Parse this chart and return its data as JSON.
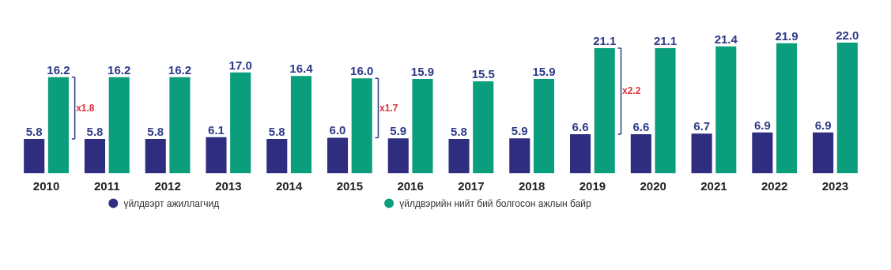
{
  "chart_data": {
    "type": "bar",
    "categories": [
      "2010",
      "2011",
      "2012",
      "2013",
      "2014",
      "2015",
      "2016",
      "2017",
      "2018",
      "2019",
      "2020",
      "2021",
      "2022",
      "2023"
    ],
    "series": [
      {
        "name": "үйлдвэрт ажиллагчид",
        "color": "#2e2d7f",
        "values": [
          5.8,
          5.8,
          5.8,
          6.1,
          5.8,
          6.0,
          5.9,
          5.8,
          5.9,
          6.6,
          6.6,
          6.7,
          6.9,
          6.9
        ],
        "value_labels": [
          "5.8",
          "5.8",
          "5.8",
          "6.1",
          "5.8",
          "6.0",
          "5.9",
          "5.8",
          "5.9",
          "6.6",
          "6.6",
          "6.7",
          "6.9",
          "6.9"
        ]
      },
      {
        "name": "үйлдвэрийн нийт бий болгосон ажлын байр",
        "color": "#0a9e7c",
        "values": [
          16.2,
          16.2,
          16.2,
          17.0,
          16.4,
          16.0,
          15.9,
          15.5,
          15.9,
          21.1,
          21.1,
          21.4,
          21.9,
          22.0
        ],
        "value_labels": [
          "16.2",
          "16.2",
          "16.2",
          "17.0",
          "16.4",
          "16.0",
          "15.9",
          "15.5",
          "15.9",
          "21.1",
          "21.1",
          "21.4",
          "21.9",
          "22.0"
        ]
      }
    ],
    "data_labels": true,
    "legend": "bottom",
    "annotations": [
      {
        "text": "x1.8",
        "x": "2011",
        "y": 11.0
      },
      {
        "text": "x1.7",
        "x": "2016",
        "y": 11.0
      },
      {
        "text": "x2.2",
        "x": "2020",
        "y": 13.9
      }
    ]
  }
}
